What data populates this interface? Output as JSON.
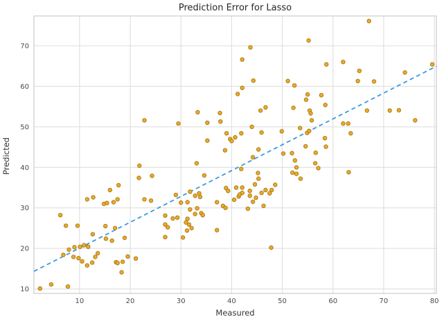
{
  "title": "Prediction Error for Lasso",
  "chart_data": {
    "type": "scatter",
    "title": "Prediction Error for Lasso",
    "xlabel": "Measured",
    "ylabel": "Predicted",
    "xlim": [
      1.0,
      80.4
    ],
    "ylim": [
      8.9,
      77.35
    ],
    "xticks": [
      10,
      20,
      30,
      40,
      50,
      60,
      70,
      80
    ],
    "yticks": [
      10,
      20,
      30,
      40,
      50,
      60,
      70
    ],
    "grid": true,
    "legend": "none",
    "marker_fill": "#ecab2d",
    "marker_edge": "#ad7d15",
    "line_color": "#3c99dd",
    "grid_color": "#dcdcdc",
    "spine_color": "#cbcbcb",
    "tick_text_color": "#494949",
    "fit_line": {
      "style": "dashed",
      "x1": 1.0,
      "y1": 14.35,
      "x2": 80.4,
      "y2": 64.95
    },
    "points": [
      [
        2.2,
        10.1
      ],
      [
        4.4,
        11.1
      ],
      [
        7.7,
        10.6
      ],
      [
        6.2,
        28.2
      ],
      [
        6.8,
        18.4
      ],
      [
        7.3,
        25.6
      ],
      [
        7.9,
        19.7
      ],
      [
        8.8,
        17.9
      ],
      [
        9.0,
        20.3
      ],
      [
        9.6,
        25.6
      ],
      [
        9.8,
        17.6
      ],
      [
        10.1,
        20.4
      ],
      [
        10.5,
        16.8
      ],
      [
        10.9,
        20.8
      ],
      [
        11.5,
        15.8
      ],
      [
        11.5,
        32.1
      ],
      [
        11.7,
        20.4
      ],
      [
        12.5,
        16.5
      ],
      [
        12.6,
        23.5
      ],
      [
        12.7,
        32.6
      ],
      [
        13.1,
        17.9
      ],
      [
        13.6,
        18.8
      ],
      [
        14.8,
        31.0
      ],
      [
        15.1,
        25.5
      ],
      [
        15.2,
        22.4
      ],
      [
        15.4,
        31.2
      ],
      [
        16.0,
        34.4
      ],
      [
        16.4,
        21.9
      ],
      [
        16.7,
        31.4
      ],
      [
        17.0,
        25.0
      ],
      [
        17.2,
        16.6
      ],
      [
        17.5,
        16.4
      ],
      [
        17.5,
        32.1
      ],
      [
        17.7,
        35.6
      ],
      [
        18.3,
        14.1
      ],
      [
        18.5,
        16.7
      ],
      [
        18.9,
        22.6
      ],
      [
        19.5,
        18.0
      ],
      [
        21.1,
        17.5
      ],
      [
        21.7,
        37.4
      ],
      [
        21.8,
        40.4
      ],
      [
        22.8,
        32.1
      ],
      [
        22.8,
        51.6
      ],
      [
        24.1,
        31.8
      ],
      [
        24.3,
        37.9
      ],
      [
        26.9,
        28.1
      ],
      [
        26.9,
        25.9
      ],
      [
        26.9,
        22.8
      ],
      [
        27.4,
        25.2
      ],
      [
        28.4,
        27.4
      ],
      [
        29.0,
        33.2
      ],
      [
        29.3,
        27.6
      ],
      [
        29.5,
        50.8
      ],
      [
        30.0,
        31.3
      ],
      [
        30.4,
        22.7
      ],
      [
        31.0,
        26.4
      ],
      [
        31.2,
        24.4
      ],
      [
        31.3,
        31.4
      ],
      [
        31.3,
        27.3
      ],
      [
        31.6,
        25.9
      ],
      [
        31.8,
        34.0
      ],
      [
        31.8,
        29.6
      ],
      [
        32.1,
        25.0
      ],
      [
        32.8,
        28.5
      ],
      [
        32.8,
        33.0
      ],
      [
        33.1,
        41.0
      ],
      [
        33.2,
        29.9
      ],
      [
        33.3,
        53.6
      ],
      [
        33.6,
        33.6
      ],
      [
        33.8,
        32.7
      ],
      [
        34.0,
        28.7
      ],
      [
        34.3,
        28.2
      ],
      [
        34.6,
        38.0
      ],
      [
        35.2,
        51.0
      ],
      [
        35.2,
        46.6
      ],
      [
        37.1,
        31.4
      ],
      [
        37.1,
        24.5
      ],
      [
        37.7,
        53.4
      ],
      [
        37.8,
        51.3
      ],
      [
        38.3,
        30.5
      ],
      [
        38.8,
        30.0
      ],
      [
        38.7,
        44.2
      ],
      [
        38.9,
        34.9
      ],
      [
        39.0,
        48.4
      ],
      [
        39.3,
        34.2
      ],
      [
        39.7,
        47.0
      ],
      [
        40.0,
        46.5
      ],
      [
        40.5,
        32.0
      ],
      [
        40.7,
        47.4
      ],
      [
        40.9,
        35.0
      ],
      [
        41.2,
        58.1
      ],
      [
        41.4,
        32.8
      ],
      [
        41.6,
        33.3
      ],
      [
        41.9,
        48.4
      ],
      [
        41.9,
        39.6
      ],
      [
        42.1,
        66.6
      ],
      [
        42.1,
        59.6
      ],
      [
        42.1,
        35.0
      ],
      [
        42.1,
        33.7
      ],
      [
        43.2,
        29.8
      ],
      [
        43.6,
        34.2
      ],
      [
        43.6,
        33.0
      ],
      [
        43.7,
        69.6
      ],
      [
        44.0,
        50.0
      ],
      [
        44.2,
        42.5
      ],
      [
        44.2,
        31.5
      ],
      [
        44.3,
        61.4
      ],
      [
        44.6,
        35.8
      ],
      [
        44.8,
        32.5
      ],
      [
        45.2,
        38.6
      ],
      [
        45.3,
        44.4
      ],
      [
        45.3,
        37.2
      ],
      [
        45.7,
        54.0
      ],
      [
        45.9,
        48.6
      ],
      [
        45.9,
        33.7
      ],
      [
        46.3,
        30.5
      ],
      [
        46.7,
        54.8
      ],
      [
        46.7,
        34.4
      ],
      [
        47.5,
        33.6
      ],
      [
        47.8,
        20.2
      ],
      [
        47.9,
        34.4
      ],
      [
        48.6,
        35.7
      ],
      [
        49.9,
        48.9
      ],
      [
        50.2,
        43.4
      ],
      [
        51.1,
        61.3
      ],
      [
        51.9,
        43.5
      ],
      [
        52.2,
        54.7
      ],
      [
        52.4,
        60.2
      ],
      [
        52.5,
        41.7
      ],
      [
        52.8,
        40.0
      ],
      [
        52.0,
        38.7
      ],
      [
        52.8,
        38.4
      ],
      [
        53.6,
        37.2
      ],
      [
        53.5,
        49.7
      ],
      [
        54.6,
        45.2
      ],
      [
        54.7,
        56.7
      ],
      [
        54.9,
        48.5
      ],
      [
        55.0,
        58.0
      ],
      [
        55.2,
        71.3
      ],
      [
        55.3,
        49.0
      ],
      [
        55.4,
        54.0
      ],
      [
        55.6,
        53.3
      ],
      [
        55.8,
        51.6
      ],
      [
        56.5,
        41.0
      ],
      [
        56.6,
        43.6
      ],
      [
        57.1,
        39.8
      ],
      [
        57.7,
        57.8
      ],
      [
        58.4,
        47.2
      ],
      [
        58.5,
        55.4
      ],
      [
        58.6,
        45.1
      ],
      [
        58.7,
        65.4
      ],
      [
        62.0,
        66.0
      ],
      [
        62.0,
        50.8
      ],
      [
        63.0,
        50.8
      ],
      [
        63.1,
        38.8
      ],
      [
        63.5,
        48.4
      ],
      [
        64.9,
        61.3
      ],
      [
        65.2,
        63.8
      ],
      [
        66.7,
        54.0
      ],
      [
        67.1,
        76.1
      ],
      [
        68.1,
        61.2
      ],
      [
        71.2,
        54.0
      ],
      [
        73.0,
        54.1
      ],
      [
        74.2,
        63.4
      ],
      [
        76.2,
        51.6
      ],
      [
        79.6,
        65.4
      ]
    ]
  }
}
